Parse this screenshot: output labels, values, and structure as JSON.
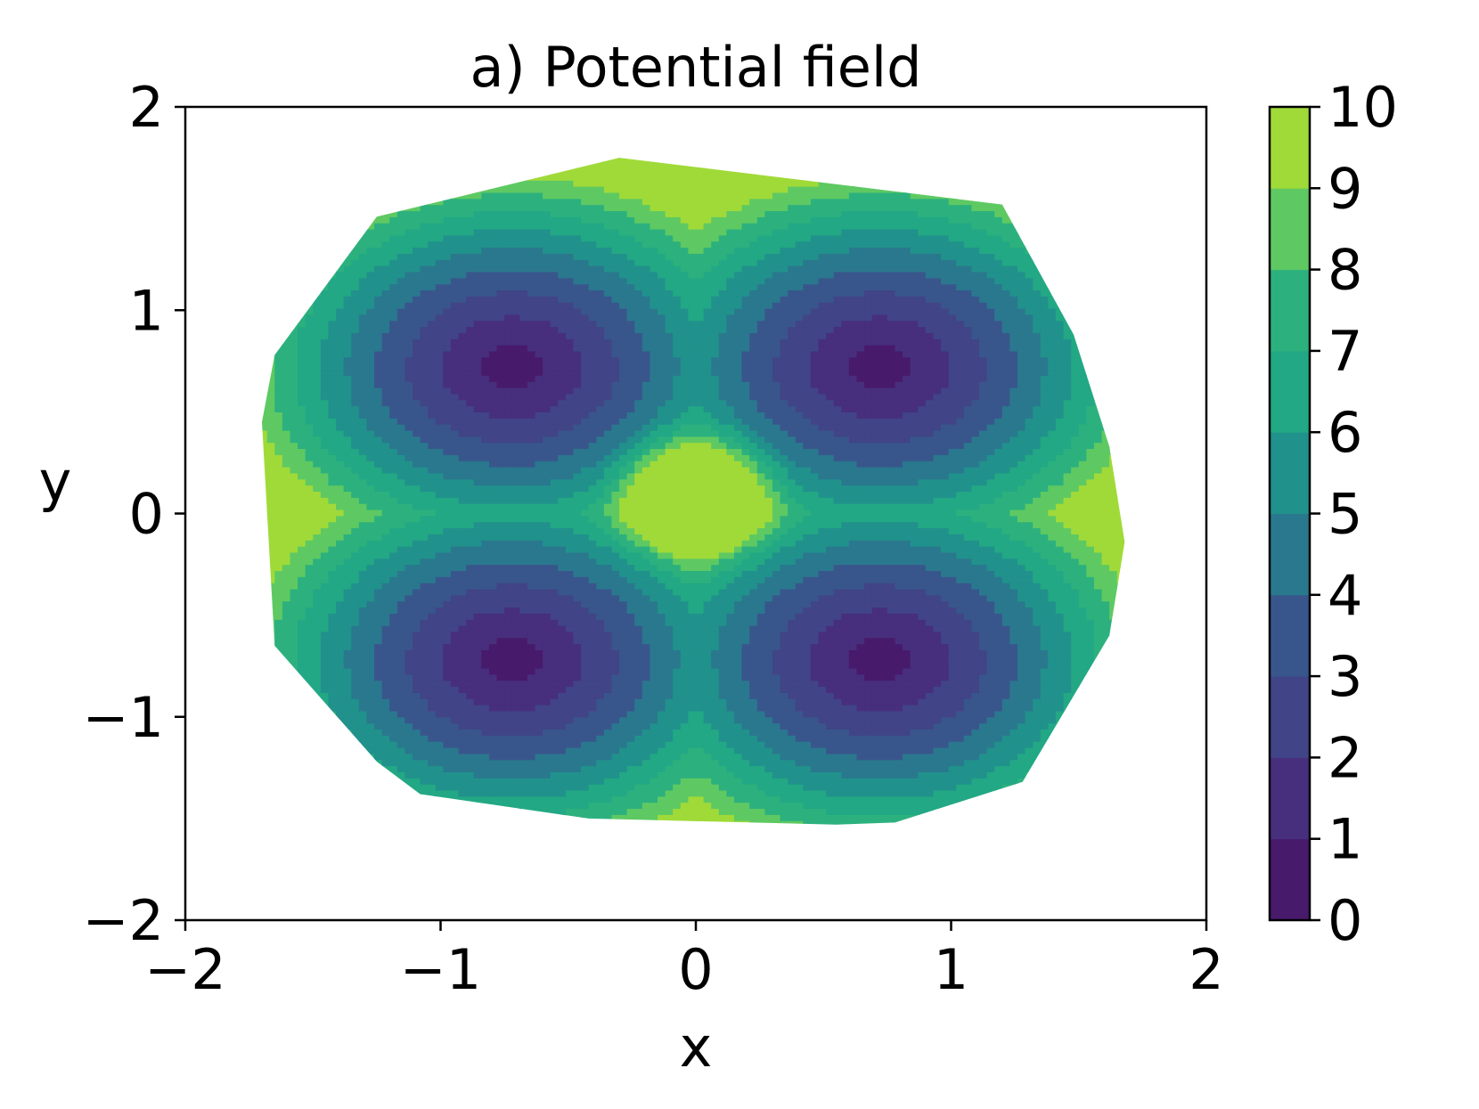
{
  "chart_data": {
    "type": "contourf",
    "title": "a) Potential field",
    "xlabel": "x",
    "ylabel": "y",
    "xlim": [
      -2,
      2
    ],
    "ylim": [
      -2,
      2
    ],
    "xticks": [
      -2,
      -1,
      0,
      1,
      2
    ],
    "yticks": [
      -2,
      -1,
      0,
      1,
      2
    ],
    "xtick_labels": [
      "−2",
      "−1",
      "0",
      "1",
      "2"
    ],
    "ytick_labels": [
      "−2",
      "−1",
      "0",
      "1",
      "2"
    ],
    "colormap": "viridis",
    "levels": [
      0,
      1,
      2,
      3,
      4,
      5,
      6,
      7,
      8,
      9,
      10
    ],
    "level_colors": [
      "#481a6c",
      "#472f7d",
      "#414487",
      "#39568c",
      "#2a788e",
      "#21918c",
      "#22a884",
      "#2cb17e",
      "#5ec962",
      "#a0da39",
      "#dde318"
    ],
    "colorbar": {
      "ticks": [
        0,
        1,
        2,
        3,
        4,
        5,
        6,
        7,
        8,
        9,
        10
      ],
      "tick_labels": [
        "0",
        "1",
        "2",
        "3",
        "4",
        "5",
        "6",
        "7",
        "8",
        "9",
        "10"
      ],
      "placement": "right"
    },
    "field": {
      "description": "Four minima near (±0.72, ±0.72) with value 0–1; central maximum near (0, 0.08) reaching ~10; outer boundary values ~6–9",
      "minima": [
        {
          "x": -0.72,
          "y": 0.72,
          "value": 0.5
        },
        {
          "x": 0.72,
          "y": 0.72,
          "value": 0.5
        },
        {
          "x": -0.72,
          "y": -0.72,
          "value": 0.5
        },
        {
          "x": 0.72,
          "y": -0.72,
          "value": 0.5
        }
      ],
      "maximum": {
        "x": 0,
        "y": 0.08,
        "value": 10
      },
      "domain_boundary": [
        [
          -0.3,
          1.75
        ],
        [
          1.2,
          1.52
        ],
        [
          1.48,
          0.88
        ],
        [
          1.62,
          0.33
        ],
        [
          1.68,
          -0.14
        ],
        [
          1.62,
          -0.6
        ],
        [
          1.28,
          -1.32
        ],
        [
          0.78,
          -1.52
        ],
        [
          0.55,
          -1.53
        ],
        [
          -0.42,
          -1.5
        ],
        [
          -1.08,
          -1.38
        ],
        [
          -1.25,
          -1.22
        ],
        [
          -1.65,
          -0.65
        ],
        [
          -1.7,
          0.45
        ],
        [
          -1.65,
          0.78
        ],
        [
          -1.25,
          1.46
        ]
      ]
    },
    "grid": false
  }
}
